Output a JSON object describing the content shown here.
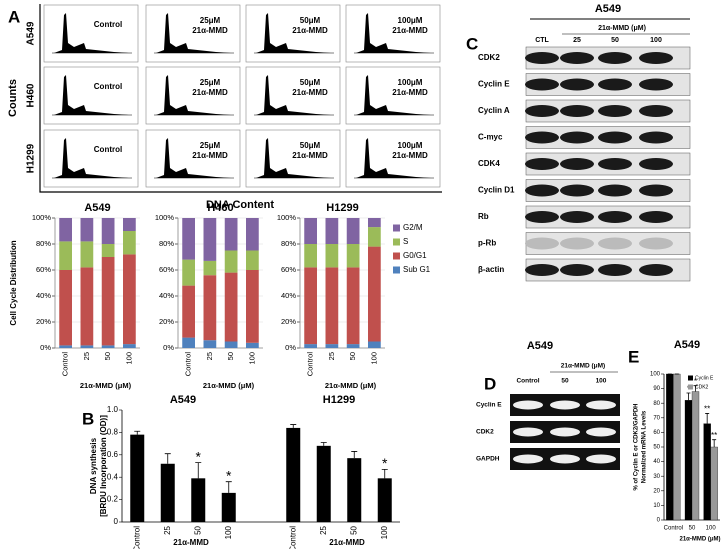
{
  "panel_labels": {
    "a": "A",
    "b": "B",
    "c": "C",
    "d": "D",
    "e": "E"
  },
  "flow": {
    "y_label": "Counts",
    "x_label": "DNA Content",
    "rows": [
      "A549",
      "H460",
      "H1299"
    ],
    "conditions": [
      [
        "Control"
      ],
      [
        "25μM",
        "21α-MMD"
      ],
      [
        "50μM",
        "21α-MMD"
      ],
      [
        "100μM",
        "21α-MMD"
      ]
    ]
  },
  "chart_data": [
    {
      "type": "stacked_bar",
      "title": "A549",
      "y_label": "Cell Cycle Distribution",
      "x_label": "21α-MMD (μM)",
      "categories": [
        "Control",
        "25",
        "50",
        "100"
      ],
      "ylim": [
        0,
        100
      ],
      "yticks": [
        {
          "value": 0,
          "label": "0%"
        },
        {
          "value": 20,
          "label": "20%"
        },
        {
          "value": 40,
          "label": "40%"
        },
        {
          "value": 60,
          "label": "60%"
        },
        {
          "value": 80,
          "label": "80%"
        },
        {
          "value": 100,
          "label": "100%"
        }
      ],
      "series": [
        {
          "name": "Sub G1",
          "color": "#4f81bd",
          "values": [
            2,
            2,
            2,
            3
          ]
        },
        {
          "name": "G0/G1",
          "color": "#c0504d",
          "values": [
            58,
            60,
            68,
            69
          ]
        },
        {
          "name": "S",
          "color": "#9bbb59",
          "values": [
            22,
            20,
            10,
            18
          ]
        },
        {
          "name": "G2/M",
          "color": "#8064a2",
          "values": [
            18,
            18,
            20,
            10
          ]
        }
      ]
    },
    {
      "type": "stacked_bar",
      "title": "H460",
      "x_label": "21α-MMD (μM)",
      "categories": [
        "Control",
        "25",
        "50",
        "100"
      ],
      "ylim": [
        0,
        100
      ],
      "yticks": [
        {
          "value": 0,
          "label": "0%"
        },
        {
          "value": 20,
          "label": "20%"
        },
        {
          "value": 40,
          "label": "40%"
        },
        {
          "value": 60,
          "label": "60%"
        },
        {
          "value": 80,
          "label": "80%"
        },
        {
          "value": 100,
          "label": "100%"
        }
      ],
      "series": [
        {
          "name": "Sub G1",
          "color": "#4f81bd",
          "values": [
            8,
            6,
            5,
            4
          ]
        },
        {
          "name": "G0/G1",
          "color": "#c0504d",
          "values": [
            40,
            50,
            53,
            56
          ]
        },
        {
          "name": "S",
          "color": "#9bbb59",
          "values": [
            20,
            11,
            17,
            15
          ]
        },
        {
          "name": "G2/M",
          "color": "#8064a2",
          "values": [
            32,
            33,
            25,
            25
          ]
        }
      ]
    },
    {
      "type": "stacked_bar",
      "title": "H1299",
      "x_label": "21α-MMD (μM)",
      "categories": [
        "Control",
        "25",
        "50",
        "100"
      ],
      "ylim": [
        0,
        100
      ],
      "legend": "right",
      "yticks": [
        {
          "value": 0,
          "label": "0%"
        },
        {
          "value": 20,
          "label": "20%"
        },
        {
          "value": 40,
          "label": "40%"
        },
        {
          "value": 60,
          "label": "60%"
        },
        {
          "value": 80,
          "label": "80%"
        },
        {
          "value": 100,
          "label": "100%"
        }
      ],
      "series": [
        {
          "name": "Sub G1",
          "color": "#4f81bd",
          "values": [
            3,
            3,
            3,
            5
          ]
        },
        {
          "name": "G0/G1",
          "color": "#c0504d",
          "values": [
            59,
            59,
            59,
            73
          ]
        },
        {
          "name": "S",
          "color": "#9bbb59",
          "values": [
            18,
            18,
            18,
            15
          ]
        },
        {
          "name": "G2/M",
          "color": "#8064a2",
          "values": [
            20,
            20,
            20,
            7
          ]
        }
      ]
    },
    {
      "type": "bar_groups",
      "y_label": [
        "DNA synthesis",
        "[BRDU Incorporation (OD)]"
      ],
      "ylim": [
        0,
        1
      ],
      "yticks": [
        0,
        0.2,
        0.4,
        0.6,
        0.8,
        {
          "value": 1,
          "label": "1.0"
        }
      ],
      "color": "#000000",
      "groups": [
        {
          "title": "A549",
          "x_label": "21α-MMD",
          "categories": [
            "Control",
            "25",
            "50",
            "100"
          ],
          "values": [
            0.78,
            0.52,
            0.39,
            0.26
          ],
          "errors": [
            0.03,
            0.09,
            0.14,
            0.1
          ],
          "annotations": [
            null,
            null,
            "*",
            "*"
          ]
        },
        {
          "title": "H1299",
          "x_label": "21α-MMD",
          "categories": [
            "Control",
            "25",
            "50",
            "100"
          ],
          "values": [
            0.84,
            0.68,
            0.57,
            0.39
          ],
          "errors": [
            0.03,
            0.03,
            0.06,
            0.08
          ],
          "annotations": [
            null,
            null,
            null,
            "*"
          ]
        }
      ]
    },
    {
      "type": "grouped_bar",
      "title": "A549",
      "y_label": [
        "% of Cyclin E or CDK2/GAPDH",
        "Normalized mRNA Levels"
      ],
      "x_label": "21α-MMD (μM)",
      "categories": [
        "Control",
        "50",
        "100"
      ],
      "ylim": [
        0,
        100
      ],
      "yticks": [
        0,
        10,
        20,
        30,
        40,
        50,
        60,
        70,
        80,
        90,
        100
      ],
      "series": [
        {
          "name": "Cyclin E",
          "color": "#000000",
          "values": [
            100,
            82,
            66
          ],
          "errors": [
            0,
            5,
            7
          ],
          "annotations": [
            null,
            "*",
            "**"
          ]
        },
        {
          "name": "CDK2",
          "color": "#999999",
          "values": [
            100,
            88,
            50
          ],
          "errors": [
            0,
            4,
            5
          ],
          "annotations": [
            null,
            "*",
            "**"
          ]
        }
      ]
    }
  ],
  "western": {
    "title": "A549",
    "treatment": "21α-MMD (μM)",
    "lanes": [
      "CTL",
      "25",
      "50",
      "100"
    ],
    "proteins": [
      "CDK2",
      "Cyclin E",
      "Cyclin A",
      "C-myc",
      "CDK4",
      "Cyclin D1",
      "Rb",
      "p-Rb",
      "β-actin"
    ]
  },
  "pcr": {
    "title": "A549",
    "treatment": "21α-MMD (μM)",
    "lanes": [
      "Control",
      "50",
      "100"
    ],
    "genes": [
      "Cyclin E",
      "CDK2",
      "GAPDH"
    ]
  }
}
